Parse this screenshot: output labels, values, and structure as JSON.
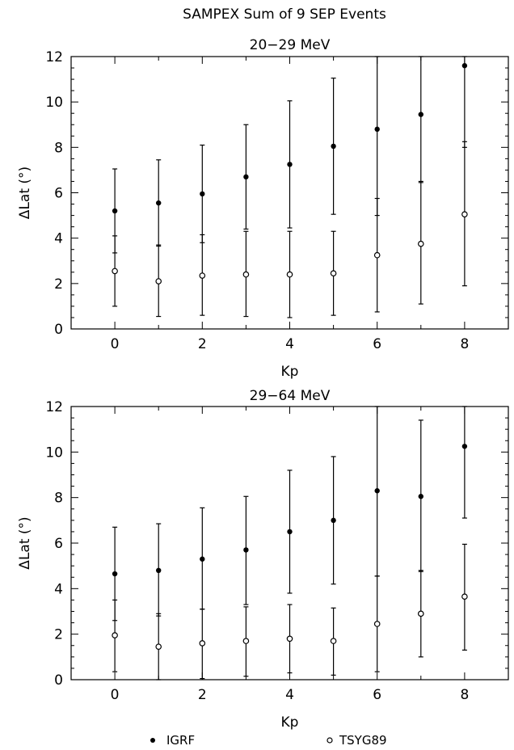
{
  "figure": {
    "title": "SAMPEX Sum of 9 SEP Events"
  },
  "legend": {
    "igrf_label": "IGRF",
    "tsyg_label": "TSYG89"
  },
  "chart_data": [
    {
      "type": "scatter",
      "title": "20−29 MeV",
      "xlabel": "Kp",
      "ylabel": "ΔLat (°)",
      "xlim": [
        -1,
        9
      ],
      "ylim": [
        0,
        12
      ],
      "xticks": [
        0,
        2,
        4,
        6,
        8
      ],
      "yticks": [
        0,
        2,
        4,
        6,
        8,
        10,
        12
      ],
      "grid": false,
      "series": [
        {
          "name": "IGRF",
          "marker": "filled-circle",
          "x": [
            0,
            1,
            2,
            3,
            4,
            5,
            6,
            7,
            8
          ],
          "y": [
            5.2,
            5.55,
            5.95,
            6.7,
            7.25,
            8.05,
            8.8,
            9.45,
            11.6
          ],
          "y_low": [
            3.35,
            3.65,
            3.8,
            4.4,
            4.45,
            5.05,
            5.0,
            6.45,
            8.0
          ],
          "y_high": [
            7.05,
            7.45,
            8.1,
            9.0,
            10.05,
            11.05,
            12.0,
            12.0,
            12.0
          ]
        },
        {
          "name": "TSYG89",
          "marker": "open-circle",
          "x": [
            0,
            1,
            2,
            3,
            4,
            5,
            6,
            7,
            8
          ],
          "y": [
            2.55,
            2.1,
            2.35,
            2.4,
            2.4,
            2.45,
            3.25,
            3.75,
            5.05
          ],
          "y_low": [
            1.0,
            0.55,
            0.6,
            0.55,
            0.5,
            0.6,
            0.75,
            1.1,
            1.9
          ],
          "y_high": [
            4.1,
            3.7,
            4.15,
            4.3,
            4.3,
            4.3,
            5.75,
            6.5,
            8.25
          ]
        }
      ]
    },
    {
      "type": "scatter",
      "title": "29−64 MeV",
      "xlabel": "Kp",
      "ylabel": "ΔLat (°)",
      "xlim": [
        -1,
        9
      ],
      "ylim": [
        0,
        12
      ],
      "xticks": [
        0,
        2,
        4,
        6,
        8
      ],
      "yticks": [
        0,
        2,
        4,
        6,
        8,
        10,
        12
      ],
      "grid": false,
      "series": [
        {
          "name": "IGRF",
          "marker": "filled-circle",
          "x": [
            0,
            1,
            2,
            3,
            4,
            5,
            6,
            7,
            8
          ],
          "y": [
            4.65,
            4.8,
            5.3,
            5.7,
            6.5,
            7.0,
            8.3,
            8.05,
            10.25
          ],
          "y_low": [
            2.6,
            2.8,
            3.1,
            3.3,
            3.8,
            4.2,
            4.55,
            4.75,
            7.1
          ],
          "y_high": [
            6.7,
            6.85,
            7.55,
            8.05,
            9.2,
            9.8,
            12.0,
            11.4,
            12.0
          ]
        },
        {
          "name": "TSYG89",
          "marker": "open-circle",
          "x": [
            0,
            1,
            2,
            3,
            4,
            5,
            6,
            7,
            8
          ],
          "y": [
            1.95,
            1.45,
            1.6,
            1.7,
            1.8,
            1.7,
            2.45,
            2.9,
            3.65
          ],
          "y_low": [
            0.35,
            0.0,
            0.05,
            0.15,
            0.3,
            0.2,
            0.35,
            1.0,
            1.3
          ],
          "y_high": [
            3.5,
            2.9,
            3.1,
            3.2,
            3.3,
            3.15,
            4.55,
            4.8,
            5.95
          ]
        }
      ]
    }
  ]
}
